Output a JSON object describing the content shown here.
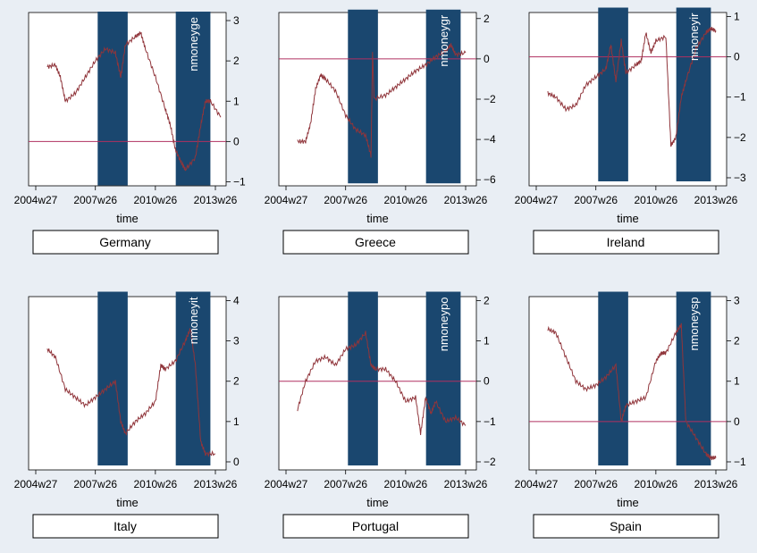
{
  "colors": {
    "background": "#e9eef4",
    "plot_bg": "#ffffff",
    "band": "#1a476f",
    "series": "#90353b",
    "refline": "#b03060"
  },
  "chart_data": [
    {
      "type": "line",
      "panel": "Germany",
      "series_name": "nmoneyge",
      "xlabel": "time",
      "x_ticks": [
        "2004w27",
        "2007w26",
        "2010w26",
        "2013w26"
      ],
      "ylim": [
        -1.1,
        3.2
      ],
      "y_ticks": [
        "-1",
        "0",
        "1",
        "2",
        "3"
      ],
      "reference_line": 0,
      "shaded_periods": [
        [
          "2007w32",
          "2009w06"
        ],
        [
          "2011w27",
          "2013w13"
        ]
      ],
      "points": [
        [
          "2005w05",
          1.85
        ],
        [
          "2005w26",
          1.9
        ],
        [
          "2005w39",
          1.6
        ],
        [
          "2005w52",
          1.0
        ],
        [
          "2006w26",
          1.2
        ],
        [
          "2006w52",
          1.6
        ],
        [
          "2007w26",
          2.0
        ],
        [
          "2007w52",
          2.3
        ],
        [
          "2008w26",
          2.2
        ],
        [
          "2008w40",
          1.6
        ],
        [
          "2008w52",
          2.4
        ],
        [
          "2009w26",
          2.6
        ],
        [
          "2009w40",
          2.7
        ],
        [
          "2009w52",
          2.3
        ],
        [
          "2010w26",
          1.6
        ],
        [
          "2010w52",
          0.8
        ],
        [
          "2011w13",
          0.4
        ],
        [
          "2011w26",
          -0.2
        ],
        [
          "2011w40",
          -0.5
        ],
        [
          "2011w52",
          -0.7
        ],
        [
          "2012w26",
          -0.4
        ],
        [
          "2012w40",
          0.4
        ],
        [
          "2012w52",
          1.0
        ],
        [
          "2013w13",
          1.0
        ],
        [
          "2013w40",
          0.6
        ]
      ]
    },
    {
      "type": "line",
      "panel": "Greece",
      "series_name": "nmoneygr",
      "xlabel": "time",
      "x_ticks": [
        "2004w27",
        "2007w26",
        "2010w26",
        "2013w26"
      ],
      "ylim": [
        -6.3,
        2.3
      ],
      "y_ticks": [
        "-6",
        "-4",
        "-2",
        "0",
        "2"
      ],
      "reference_line": 0,
      "shaded_periods": [
        [
          "2007w32",
          "2009w06"
        ],
        [
          "2011w27",
          "2013w13"
        ]
      ],
      "points": [
        [
          "2005w05",
          -4.1
        ],
        [
          "2005w26",
          -4.1
        ],
        [
          "2005w39",
          -3.2
        ],
        [
          "2005w52",
          -1.5
        ],
        [
          "2006w13",
          -0.8
        ],
        [
          "2006w26",
          -1.0
        ],
        [
          "2006w52",
          -1.6
        ],
        [
          "2007w26",
          -2.8
        ],
        [
          "2007w52",
          -3.5
        ],
        [
          "2008w26",
          -3.8
        ],
        [
          "2008w40",
          -4.8
        ],
        [
          "2008w44",
          0.3
        ],
        [
          "2008w48",
          -2.0
        ],
        [
          "2009w26",
          -1.8
        ],
        [
          "2009w52",
          -1.4
        ],
        [
          "2010w26",
          -1.0
        ],
        [
          "2010w52",
          -0.6
        ],
        [
          "2011w26",
          -0.3
        ],
        [
          "2011w52",
          0.1
        ],
        [
          "2012w26",
          0.4
        ],
        [
          "2012w40",
          0.7
        ],
        [
          "2012w52",
          0.2
        ],
        [
          "2013w26",
          0.3
        ]
      ]
    },
    {
      "type": "line",
      "panel": "Ireland",
      "series_name": "nmoneyir",
      "xlabel": "time",
      "x_ticks": [
        "2004w27",
        "2007w26",
        "2010w26",
        "2013w26"
      ],
      "ylim": [
        -3.2,
        1.1
      ],
      "y_ticks": [
        "-3",
        "-2",
        "-1",
        "0",
        "1"
      ],
      "reference_line": 0,
      "shaded_periods": [
        [
          "2007w32",
          "2009w06"
        ],
        [
          "2011w27",
          "2013w13"
        ]
      ],
      "points": [
        [
          "2005w05",
          -0.9
        ],
        [
          "2005w26",
          -1.0
        ],
        [
          "2005w52",
          -1.3
        ],
        [
          "2006w26",
          -1.2
        ],
        [
          "2006w52",
          -0.7
        ],
        [
          "2007w26",
          -0.5
        ],
        [
          "2007w52",
          -0.3
        ],
        [
          "2008w13",
          0.3
        ],
        [
          "2008w26",
          -0.6
        ],
        [
          "2008w40",
          0.4
        ],
        [
          "2008w52",
          -0.4
        ],
        [
          "2009w26",
          -0.2
        ],
        [
          "2009w40",
          -0.1
        ],
        [
          "2009w52",
          0.6
        ],
        [
          "2010w13",
          0.1
        ],
        [
          "2010w26",
          0.4
        ],
        [
          "2010w52",
          0.5
        ],
        [
          "2011w13",
          -2.2
        ],
        [
          "2011w26",
          -2.0
        ],
        [
          "2011w40",
          -1.0
        ],
        [
          "2011w52",
          -0.6
        ],
        [
          "2012w26",
          0.2
        ],
        [
          "2012w52",
          0.6
        ],
        [
          "2013w13",
          0.7
        ],
        [
          "2013w26",
          0.65
        ]
      ]
    },
    {
      "type": "line",
      "panel": "Italy",
      "series_name": "nmoneyit",
      "xlabel": "time",
      "x_ticks": [
        "2004w27",
        "2007w26",
        "2010w26",
        "2013w26"
      ],
      "ylim": [
        -0.2,
        4.1
      ],
      "y_ticks": [
        "0",
        "1",
        "2",
        "3",
        "4"
      ],
      "shaded_periods": [
        [
          "2007w32",
          "2009w06"
        ],
        [
          "2011w27",
          "2013w13"
        ]
      ],
      "points": [
        [
          "2005w05",
          2.8
        ],
        [
          "2005w26",
          2.6
        ],
        [
          "2005w52",
          1.8
        ],
        [
          "2006w26",
          1.6
        ],
        [
          "2006w52",
          1.4
        ],
        [
          "2007w26",
          1.6
        ],
        [
          "2007w52",
          1.8
        ],
        [
          "2008w26",
          2.0
        ],
        [
          "2008w40",
          1.0
        ],
        [
          "2008w52",
          0.7
        ],
        [
          "2009w26",
          1.0
        ],
        [
          "2009w52",
          1.2
        ],
        [
          "2010w26",
          1.5
        ],
        [
          "2010w40",
          2.4
        ],
        [
          "2010w52",
          2.3
        ],
        [
          "2011w26",
          2.5
        ],
        [
          "2011w52",
          3.0
        ],
        [
          "2012w13",
          3.3
        ],
        [
          "2012w26",
          2.4
        ],
        [
          "2012w40",
          0.5
        ],
        [
          "2012w52",
          0.2
        ],
        [
          "2013w26",
          0.2
        ]
      ]
    },
    {
      "type": "line",
      "panel": "Portugal",
      "series_name": "nmoneypo",
      "xlabel": "time",
      "x_ticks": [
        "2004w27",
        "2007w26",
        "2010w26",
        "2013w26"
      ],
      "ylim": [
        -2.2,
        2.1
      ],
      "y_ticks": [
        "-2",
        "-1",
        "0",
        "1",
        "2"
      ],
      "reference_line": 0,
      "shaded_periods": [
        [
          "2007w32",
          "2009w06"
        ],
        [
          "2011w27",
          "2013w13"
        ]
      ],
      "points": [
        [
          "2005w05",
          -0.7
        ],
        [
          "2005w26",
          0.0
        ],
        [
          "2005w52",
          0.5
        ],
        [
          "2006w26",
          0.6
        ],
        [
          "2006w52",
          0.4
        ],
        [
          "2007w26",
          0.8
        ],
        [
          "2007w52",
          0.9
        ],
        [
          "2008w26",
          1.2
        ],
        [
          "2008w40",
          0.4
        ],
        [
          "2008w52",
          0.3
        ],
        [
          "2009w26",
          0.3
        ],
        [
          "2009w52",
          0.0
        ],
        [
          "2010w26",
          -0.5
        ],
        [
          "2010w52",
          -0.4
        ],
        [
          "2011w13",
          -1.3
        ],
        [
          "2011w26",
          -0.4
        ],
        [
          "2011w40",
          -0.8
        ],
        [
          "2011w52",
          -0.5
        ],
        [
          "2012w26",
          -1.0
        ],
        [
          "2012w52",
          -0.9
        ],
        [
          "2013w26",
          -1.1
        ]
      ]
    },
    {
      "type": "line",
      "panel": "Spain",
      "series_name": "nmoneysp",
      "xlabel": "time",
      "x_ticks": [
        "2004w27",
        "2007w26",
        "2010w26",
        "2013w26"
      ],
      "ylim": [
        -1.2,
        3.1
      ],
      "y_ticks": [
        "-1",
        "0",
        "1",
        "2",
        "3"
      ],
      "reference_line": 0,
      "shaded_periods": [
        [
          "2007w32",
          "2009w06"
        ],
        [
          "2011w27",
          "2013w13"
        ]
      ],
      "points": [
        [
          "2005w05",
          2.3
        ],
        [
          "2005w26",
          2.2
        ],
        [
          "2005w52",
          1.6
        ],
        [
          "2006w26",
          1.0
        ],
        [
          "2006w52",
          0.8
        ],
        [
          "2007w26",
          0.9
        ],
        [
          "2007w52",
          1.1
        ],
        [
          "2008w26",
          1.4
        ],
        [
          "2008w40",
          0.0
        ],
        [
          "2008w52",
          0.4
        ],
        [
          "2009w26",
          0.5
        ],
        [
          "2009w52",
          0.6
        ],
        [
          "2010w26",
          1.5
        ],
        [
          "2010w40",
          1.7
        ],
        [
          "2010w52",
          1.7
        ],
        [
          "2011w26",
          2.2
        ],
        [
          "2011w40",
          2.4
        ],
        [
          "2011w52",
          0.0
        ],
        [
          "2012w26",
          -0.4
        ],
        [
          "2012w52",
          -0.8
        ],
        [
          "2013w13",
          -0.9
        ],
        [
          "2013w26",
          -0.9
        ]
      ]
    }
  ]
}
